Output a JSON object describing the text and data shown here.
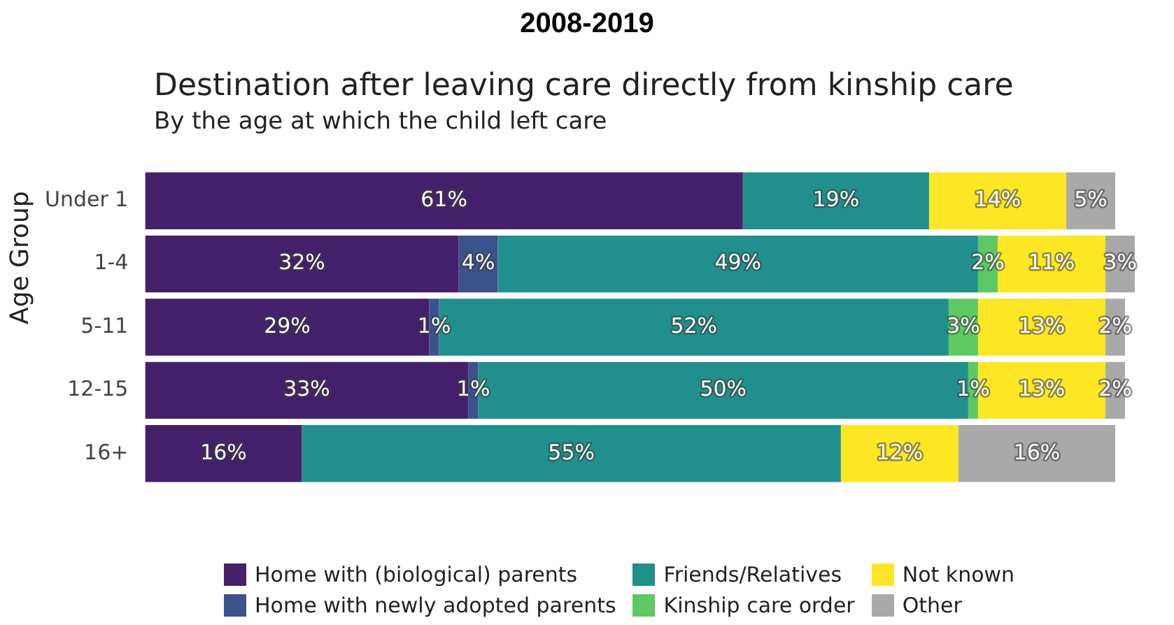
{
  "chart_data": {
    "type": "bar",
    "orientation": "horizontal",
    "stacked": true,
    "title": "2008-2019",
    "subtitle": "Destination after leaving care directly from kinship care\nBy the age at which the child left care",
    "ylabel": "Age Group",
    "categories": [
      "Under 1",
      "1-4",
      "5-11",
      "12-15",
      "16+"
    ],
    "series": [
      {
        "name": "Home with (biological) parents",
        "color": "#44206b",
        "values": [
          61,
          32,
          29,
          33,
          16
        ],
        "value_labels": [
          "61%",
          "32%",
          "29%",
          "33%",
          "16%"
        ]
      },
      {
        "name": "Home with newly adopted parents",
        "color": "#3b528b",
        "values": [
          null,
          4,
          1,
          1,
          null
        ],
        "value_labels": [
          null,
          "4%",
          "1%",
          "1%",
          null
        ]
      },
      {
        "name": "Friends/Relatives",
        "color": "#21908c",
        "values": [
          19,
          49,
          52,
          50,
          55
        ],
        "value_labels": [
          "19%",
          "49%",
          "52%",
          "50%",
          "55%"
        ]
      },
      {
        "name": "Kinship care order",
        "color": "#5ec962",
        "values": [
          null,
          2,
          3,
          1,
          null
        ],
        "value_labels": [
          null,
          "2%",
          "3%",
          "1%",
          null
        ]
      },
      {
        "name": "Not known",
        "color": "#fde725",
        "values": [
          14,
          11,
          13,
          13,
          12
        ],
        "value_labels": [
          "14%",
          "11%",
          "13%",
          "13%",
          "12%"
        ]
      },
      {
        "name": "Other",
        "color": "#a9a9a9",
        "values": [
          5,
          3,
          2,
          2,
          16
        ],
        "value_labels": [
          "5%",
          "3%",
          "2%",
          "2%",
          "16%"
        ]
      }
    ],
    "tick_labels": "y",
    "legend": "bottom"
  }
}
